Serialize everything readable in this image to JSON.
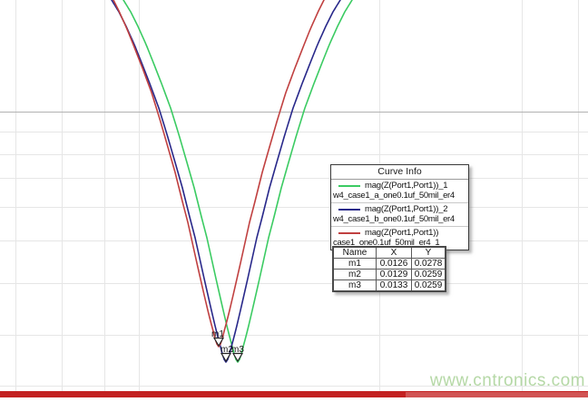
{
  "colors": {
    "green": "#3bcb62",
    "navy": "#28288a",
    "red": "#c04040",
    "grid": "#e6e6e6",
    "grid_dark": "#b2b2b2",
    "bottom_bar": "#c32121",
    "bottom_bar_light": "#d15353",
    "watermark": "#b5d8a6",
    "marker_outline": "#222222"
  },
  "legend": {
    "title": "Curve Info",
    "entries": [
      {
        "label": "mag(Z(Port1,Port1))_1",
        "sublabel": "w4_case1_a_one0.1uf_50mil_er4",
        "color": "#3bcb62"
      },
      {
        "label": "mag(Z(Port1,Port1))_2",
        "sublabel": "w4_case1_b_one0.1uf_50mil_er4",
        "color": "#28288a"
      },
      {
        "label": "mag(Z(Port1,Port1))",
        "sublabel": "case1_one0.1uf_50mil_er4_1",
        "color": "#c04040"
      }
    ]
  },
  "marker_table": {
    "headers": [
      "Name",
      "X",
      "Y"
    ],
    "rows": [
      [
        "m1",
        "0.0126",
        "0.0278"
      ],
      [
        "m2",
        "0.0129",
        "0.0259"
      ],
      [
        "m3",
        "0.0133",
        "0.0259"
      ]
    ]
  },
  "watermark": "www.cntronics.com",
  "chart_data": {
    "type": "line",
    "title": "",
    "xlabel": "",
    "ylabel": "",
    "x_axis": {
      "scale": "linear",
      "tick_labels_visible": false
    },
    "y_axis": {
      "scale": "log",
      "tick_labels_visible": false
    },
    "grid": true,
    "legend_position": "middle-right",
    "series": [
      {
        "name": "mag(Z(Port1,Port1))_1",
        "dataset": "w4_case1_a_one0.1uf_50mil_er4",
        "color": "#3bcb62",
        "shape": "resonance-dip",
        "minimum": {
          "x": 0.0133,
          "y": 0.0259,
          "marker": "m3"
        }
      },
      {
        "name": "mag(Z(Port1,Port1))_2",
        "dataset": "w4_case1_b_one0.1uf_50mil_er4",
        "color": "#28288a",
        "shape": "resonance-dip",
        "minimum": {
          "x": 0.0129,
          "y": 0.0259,
          "marker": "m2"
        }
      },
      {
        "name": "mag(Z(Port1,Port1))",
        "dataset": "case1_one0.1uf_50mil_er4_1",
        "color": "#c04040",
        "shape": "resonance-dip",
        "minimum": {
          "x": 0.0126,
          "y": 0.0278,
          "marker": "m1"
        }
      }
    ],
    "markers": [
      {
        "name": "m1",
        "x": 0.0126,
        "y": 0.0278
      },
      {
        "name": "m2",
        "x": 0.0129,
        "y": 0.0259
      },
      {
        "name": "m3",
        "x": 0.0133,
        "y": 0.0259
      }
    ]
  }
}
